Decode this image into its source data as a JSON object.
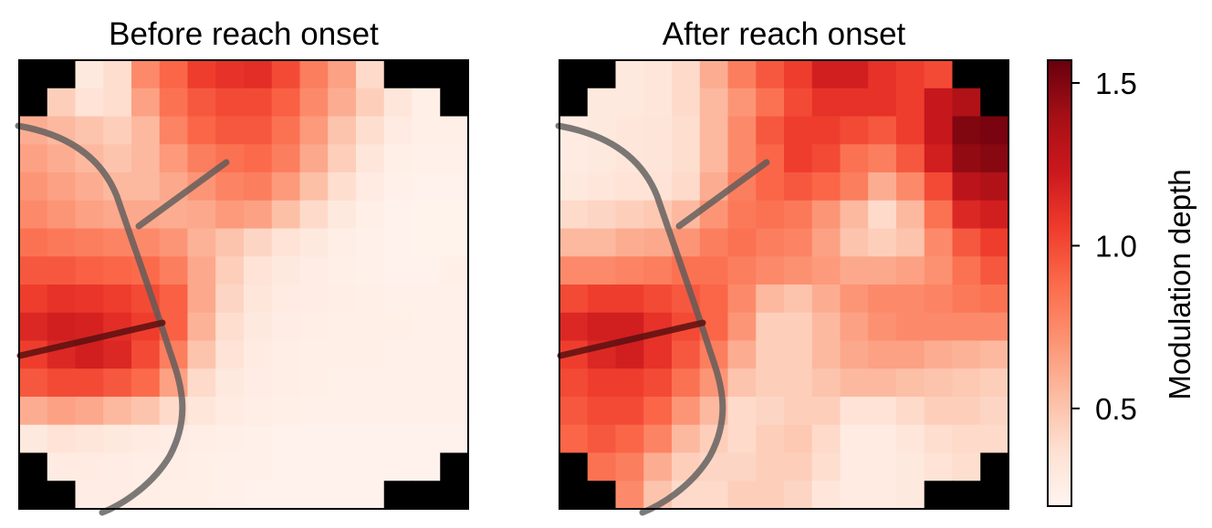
{
  "chart_data": [
    {
      "type": "heatmap",
      "title": "Before reach onset",
      "grid_size": [
        16,
        16
      ],
      "masked_corners": true,
      "values": [
        [
          null,
          null,
          0.3,
          0.38,
          0.75,
          0.9,
          1.05,
          1.1,
          1.12,
          1.0,
          0.8,
          0.65,
          0.4,
          null,
          null,
          null
        ],
        [
          null,
          0.45,
          0.35,
          0.38,
          0.65,
          0.85,
          0.95,
          1.0,
          1.0,
          0.92,
          0.75,
          0.6,
          0.45,
          0.32,
          0.25,
          null
        ],
        [
          0.6,
          0.55,
          0.5,
          0.45,
          0.55,
          0.78,
          0.9,
          0.95,
          0.95,
          0.85,
          0.68,
          0.5,
          0.38,
          0.28,
          0.25,
          0.25
        ],
        [
          0.65,
          0.6,
          0.55,
          0.5,
          0.55,
          0.68,
          0.8,
          0.85,
          0.88,
          0.8,
          0.62,
          0.45,
          0.32,
          0.25,
          0.24,
          0.24
        ],
        [
          0.7,
          0.65,
          0.6,
          0.55,
          0.55,
          0.62,
          0.7,
          0.78,
          0.8,
          0.68,
          0.52,
          0.38,
          0.28,
          0.24,
          0.23,
          0.23
        ],
        [
          0.75,
          0.7,
          0.65,
          0.62,
          0.62,
          0.6,
          0.62,
          0.68,
          0.65,
          0.52,
          0.4,
          0.3,
          0.25,
          0.23,
          0.22,
          0.22
        ],
        [
          0.85,
          0.82,
          0.8,
          0.78,
          0.75,
          0.7,
          0.58,
          0.5,
          0.42,
          0.35,
          0.3,
          0.26,
          0.24,
          0.23,
          0.22,
          0.22
        ],
        [
          0.95,
          0.95,
          0.92,
          0.9,
          0.88,
          0.8,
          0.62,
          0.45,
          0.35,
          0.3,
          0.27,
          0.25,
          0.24,
          0.23,
          0.23,
          0.25
        ],
        [
          1.05,
          1.1,
          1.08,
          1.05,
          1.0,
          0.92,
          0.62,
          0.42,
          0.32,
          0.28,
          0.27,
          0.26,
          0.25,
          0.24,
          0.24,
          0.24
        ],
        [
          1.15,
          1.2,
          1.18,
          1.12,
          1.05,
          0.92,
          0.58,
          0.38,
          0.3,
          0.27,
          0.26,
          0.25,
          0.25,
          0.25,
          0.24,
          0.24
        ],
        [
          1.05,
          1.15,
          1.2,
          1.15,
          1.0,
          0.8,
          0.5,
          0.35,
          0.28,
          0.26,
          0.25,
          0.25,
          0.25,
          0.24,
          0.24,
          0.24
        ],
        [
          0.95,
          1.0,
          1.0,
          0.95,
          0.88,
          0.65,
          0.4,
          0.3,
          0.27,
          0.26,
          0.25,
          0.24,
          0.24,
          0.24,
          0.24,
          0.24
        ],
        [
          0.6,
          0.65,
          0.62,
          0.55,
          0.5,
          0.4,
          0.32,
          0.28,
          0.26,
          0.25,
          0.24,
          0.24,
          0.24,
          0.24,
          0.24,
          0.24
        ],
        [
          0.3,
          0.35,
          0.32,
          0.3,
          0.28,
          0.27,
          0.26,
          0.25,
          0.24,
          0.23,
          0.23,
          0.23,
          0.23,
          0.23,
          0.23,
          0.23
        ],
        [
          null,
          0.28,
          0.28,
          0.27,
          0.26,
          0.26,
          0.25,
          0.24,
          0.24,
          0.23,
          0.23,
          0.23,
          0.23,
          0.23,
          0.23,
          null
        ],
        [
          null,
          null,
          0.27,
          0.27,
          0.26,
          0.25,
          0.25,
          0.24,
          0.23,
          0.23,
          0.23,
          0.23,
          0.23,
          null,
          null,
          null
        ]
      ]
    },
    {
      "type": "heatmap",
      "title": "After reach onset",
      "grid_size": [
        16,
        16
      ],
      "masked_corners": true,
      "values": [
        [
          null,
          null,
          0.3,
          0.32,
          0.4,
          0.6,
          0.8,
          0.95,
          1.05,
          1.2,
          1.2,
          1.1,
          1.05,
          1.0,
          null,
          null
        ],
        [
          null,
          0.3,
          0.3,
          0.32,
          0.4,
          0.55,
          0.7,
          0.85,
          1.0,
          1.1,
          1.1,
          1.1,
          1.05,
          1.25,
          1.35,
          null
        ],
        [
          0.28,
          0.3,
          0.32,
          0.33,
          0.38,
          0.55,
          0.75,
          0.95,
          1.05,
          1.05,
          1.0,
          0.95,
          1.05,
          1.25,
          1.5,
          1.52
        ],
        [
          0.28,
          0.3,
          0.32,
          0.33,
          0.38,
          0.55,
          0.75,
          0.9,
          1.05,
          1.0,
          0.85,
          0.8,
          0.95,
          1.2,
          1.45,
          1.48
        ],
        [
          0.3,
          0.32,
          0.35,
          0.35,
          0.4,
          0.6,
          0.8,
          0.9,
          0.95,
          0.9,
          0.8,
          0.6,
          0.75,
          1.0,
          1.3,
          1.35
        ],
        [
          0.4,
          0.42,
          0.45,
          0.48,
          0.55,
          0.7,
          0.82,
          0.85,
          0.82,
          0.7,
          0.55,
          0.4,
          0.55,
          0.85,
          1.15,
          1.2
        ],
        [
          0.55,
          0.55,
          0.6,
          0.62,
          0.7,
          0.8,
          0.85,
          0.8,
          0.78,
          0.65,
          0.5,
          0.45,
          0.5,
          0.75,
          0.95,
          1.05
        ],
        [
          0.75,
          0.75,
          0.78,
          0.8,
          0.85,
          0.85,
          0.8,
          0.75,
          0.72,
          0.68,
          0.62,
          0.62,
          0.65,
          0.72,
          0.85,
          0.95
        ],
        [
          1.0,
          1.05,
          1.05,
          1.0,
          0.95,
          0.9,
          0.75,
          0.55,
          0.5,
          0.6,
          0.7,
          0.75,
          0.75,
          0.78,
          0.82,
          0.85
        ],
        [
          1.15,
          1.2,
          1.2,
          1.1,
          1.0,
          0.9,
          0.7,
          0.45,
          0.45,
          0.55,
          0.65,
          0.72,
          0.75,
          0.75,
          0.75,
          0.75
        ],
        [
          1.05,
          1.15,
          1.2,
          1.1,
          0.95,
          0.8,
          0.6,
          0.45,
          0.45,
          0.55,
          0.62,
          0.65,
          0.65,
          0.6,
          0.58,
          0.55
        ],
        [
          1.0,
          1.05,
          1.05,
          1.0,
          0.85,
          0.7,
          0.5,
          0.45,
          0.45,
          0.5,
          0.55,
          0.55,
          0.52,
          0.5,
          0.48,
          0.45
        ],
        [
          0.95,
          1.0,
          1.0,
          0.9,
          0.7,
          0.55,
          0.4,
          0.42,
          0.45,
          0.45,
          0.35,
          0.35,
          0.4,
          0.45,
          0.45,
          0.42
        ],
        [
          0.9,
          0.95,
          0.9,
          0.78,
          0.55,
          0.45,
          0.4,
          0.45,
          0.48,
          0.4,
          0.28,
          0.28,
          0.32,
          0.38,
          0.4,
          0.4
        ],
        [
          null,
          0.85,
          0.8,
          0.6,
          0.45,
          0.42,
          0.42,
          0.45,
          0.45,
          0.38,
          0.28,
          0.28,
          0.3,
          0.35,
          0.38,
          null
        ],
        [
          null,
          null,
          0.75,
          0.5,
          0.4,
          0.4,
          0.45,
          0.45,
          0.42,
          0.32,
          0.28,
          0.28,
          0.3,
          null,
          null,
          null
        ]
      ]
    }
  ],
  "colorbar": {
    "label": "Modulation depth",
    "min": 0.2,
    "max": 1.57,
    "ticks": [
      0.5,
      1.0,
      1.5
    ],
    "tick_labels": [
      "0.5",
      "1.0",
      "1.5"
    ],
    "colormap": "Reds"
  }
}
